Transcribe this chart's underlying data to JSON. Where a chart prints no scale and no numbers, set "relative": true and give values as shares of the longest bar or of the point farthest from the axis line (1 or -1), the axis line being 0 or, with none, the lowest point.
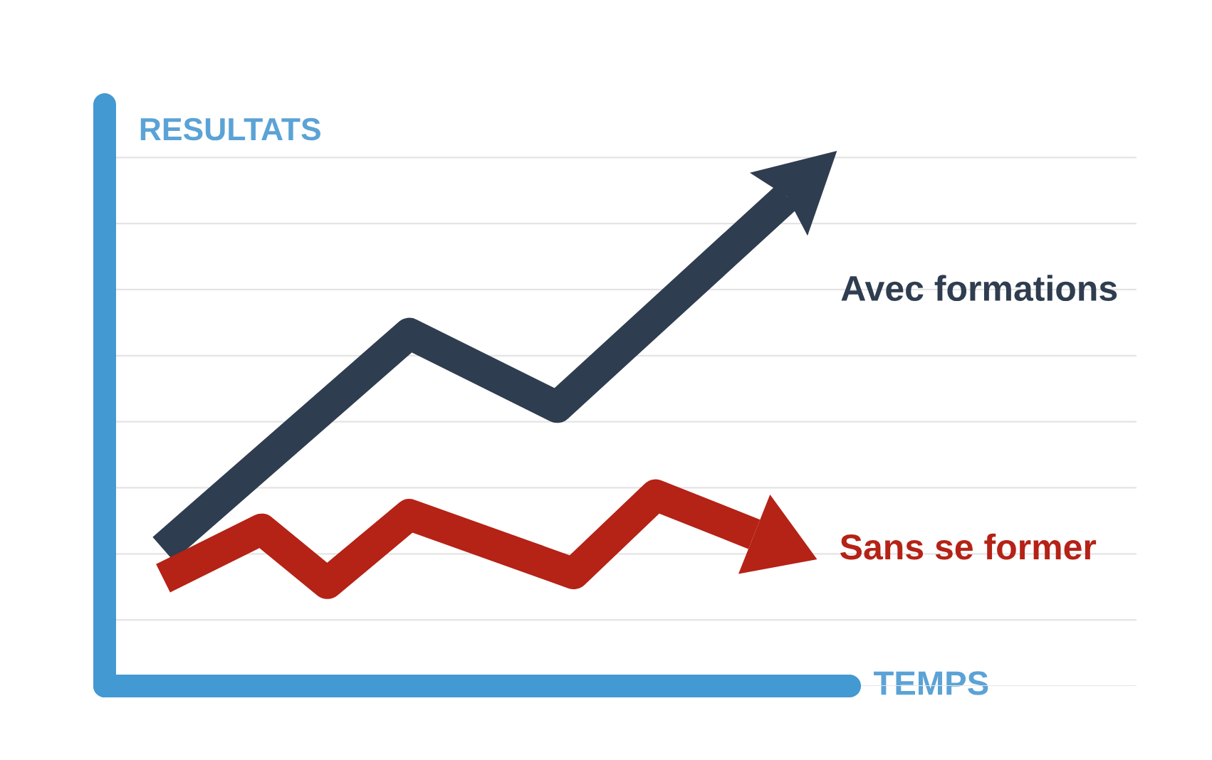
{
  "chart_data": {
    "type": "line",
    "relative": true,
    "xlabel": "TEMPS",
    "ylabel": "RESULTATS",
    "grid": "y",
    "line_style": "solid",
    "categories": [
      null,
      null,
      null,
      null,
      null,
      null,
      null,
      null,
      null,
      null,
      null,
      null,
      null,
      null,
      null,
      null,
      null,
      null,
      null,
      null,
      null,
      null,
      null,
      null,
      null,
      null,
      null,
      null,
      null,
      null,
      null,
      null,
      null,
      null,
      null,
      null,
      null,
      null,
      null
    ],
    "series": [
      {
        "name": "Avec formations",
        "color": "#2e3d4f",
        "values": [
          0.28,
          null,
          null,
          null,
          null,
          null,
          null,
          null,
          null,
          null,
          null,
          null,
          null,
          null,
          null,
          0.72,
          null,
          null,
          null,
          null,
          null,
          null,
          null,
          null,
          0.57,
          null,
          null,
          null,
          null,
          null,
          null,
          null,
          null,
          null,
          null,
          null,
          null,
          null,
          1.0
        ]
      },
      {
        "name": "Sans se former",
        "color": "#b52216",
        "values": [
          0.22,
          null,
          null,
          null,
          null,
          null,
          0.32,
          null,
          null,
          null,
          0.21,
          null,
          null,
          null,
          null,
          0.35,
          null,
          null,
          null,
          null,
          null,
          null,
          null,
          null,
          null,
          0.23,
          null,
          null,
          null,
          null,
          0.39,
          null,
          null,
          null,
          null,
          null,
          0.31,
          null,
          null
        ]
      }
    ]
  }
}
